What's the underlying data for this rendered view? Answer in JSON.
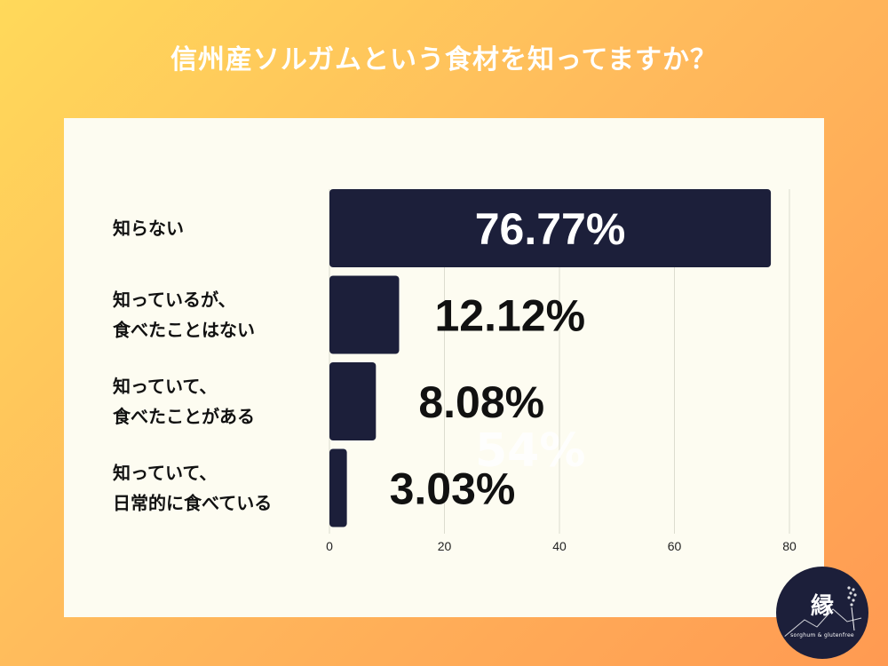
{
  "title": "信州産ソルガムという食材を知ってますか？",
  "chart_data": {
    "type": "bar",
    "orientation": "horizontal",
    "categories": [
      [
        "知らない"
      ],
      [
        "知っているが、",
        "食べたことはない"
      ],
      [
        "知っていて、",
        "食べたことがある"
      ],
      [
        "知っていて、",
        "日常的に食べている"
      ]
    ],
    "values": [
      76.77,
      12.12,
      8.08,
      3.03
    ],
    "value_labels": [
      "76.77%",
      "12.12%",
      "8.08%",
      "3.03%"
    ],
    "xlim": [
      0,
      80
    ],
    "xticks": [
      "0",
      "20",
      "40",
      "60",
      "80"
    ],
    "grid": true,
    "colors": {
      "bar": "#1c1f3a",
      "label_inside": "#ffffff",
      "label_outside": "#111111",
      "grid": "#dcdccf"
    }
  },
  "watermark": "54%",
  "logo": {
    "mark": "縁",
    "subtitle": "sorghum & glutenfree"
  }
}
